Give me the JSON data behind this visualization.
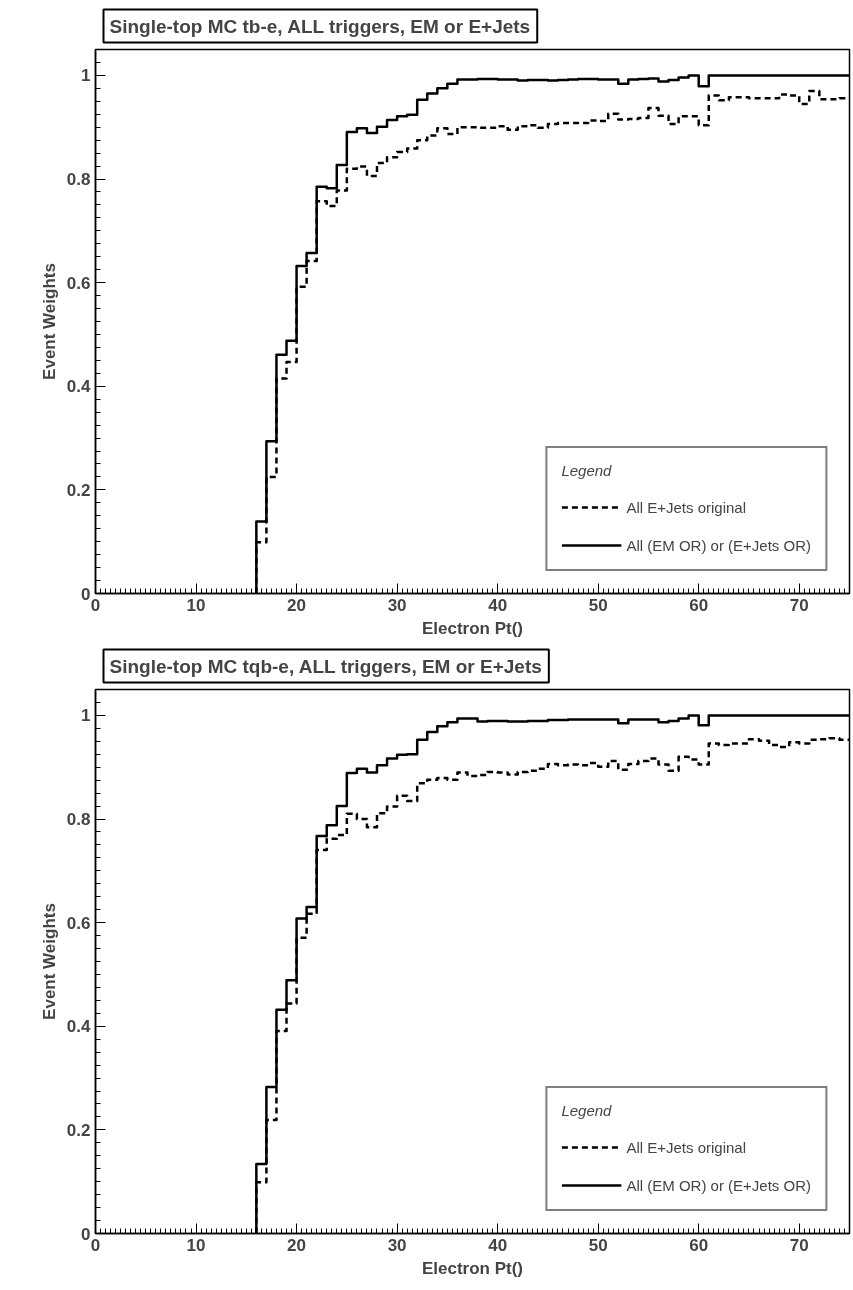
{
  "chart_data": [
    {
      "type": "histogram",
      "title": "Single-top MC tb-e, ALL triggers, EM or E+Jets",
      "xlabel": "Electron Pt()",
      "ylabel": "Event Weights",
      "legend_title": "Legend",
      "legend": "bottom right",
      "grid": false,
      "xlim": [
        0,
        75
      ],
      "ylim": [
        0,
        1.05
      ],
      "xticks": [
        0,
        10,
        20,
        30,
        40,
        50,
        60,
        70
      ],
      "yticks": [
        0,
        0.2,
        0.4,
        0.6,
        0.8,
        1
      ],
      "bins": [
        16,
        17,
        18,
        19,
        20,
        21,
        22,
        23,
        24,
        25,
        26,
        27,
        28,
        29,
        30,
        31,
        32,
        33,
        34,
        35,
        36,
        37,
        38,
        39,
        40,
        41,
        42,
        43,
        44,
        45,
        46,
        47,
        48,
        49,
        50,
        51,
        52,
        53,
        54,
        55,
        56,
        57,
        58,
        59,
        60,
        61,
        62,
        63,
        64,
        65,
        66,
        67,
        68,
        69,
        70,
        71,
        72,
        73,
        74,
        75
      ],
      "series": [
        {
          "name": "All E+Jets original",
          "color": "#000000",
          "line_style": "dashed",
          "values": [
            0.099,
            0.225,
            0.415,
            0.447,
            0.592,
            0.642,
            0.757,
            0.748,
            0.778,
            0.82,
            0.824,
            0.806,
            0.831,
            0.842,
            0.852,
            0.859,
            0.875,
            0.884,
            0.898,
            0.887,
            0.9,
            0.9,
            0.899,
            0.899,
            0.902,
            0.895,
            0.902,
            0.904,
            0.899,
            0.906,
            0.908,
            0.908,
            0.908,
            0.913,
            0.912,
            0.926,
            0.915,
            0.916,
            0.918,
            0.937,
            0.922,
            0.906,
            0.921,
            0.921,
            0.904,
            0.961,
            0.952,
            0.958,
            0.958,
            0.956,
            0.956,
            0.956,
            0.963,
            0.961,
            0.945,
            0.97,
            0.954,
            0.954,
            0.956
          ]
        },
        {
          "name": "All (EM OR) or (E+Jets OR)",
          "color": "#000000",
          "line_style": "solid",
          "values": [
            0.139,
            0.294,
            0.461,
            0.488,
            0.632,
            0.657,
            0.785,
            0.782,
            0.827,
            0.891,
            0.898,
            0.889,
            0.901,
            0.914,
            0.921,
            0.924,
            0.953,
            0.965,
            0.975,
            0.984,
            0.992,
            0.992,
            0.993,
            0.993,
            0.992,
            0.992,
            0.99,
            0.991,
            0.991,
            0.99,
            0.991,
            0.992,
            0.993,
            0.993,
            0.992,
            0.992,
            0.984,
            0.992,
            0.993,
            0.994,
            0.988,
            0.991,
            0.996,
            1.0,
            0.979,
            1.0,
            1.0,
            1.0,
            1.0,
            1.0,
            1.0,
            1.0,
            1.0,
            1.0,
            1.0,
            1.0,
            1.0,
            1.0,
            1.0
          ]
        }
      ]
    },
    {
      "type": "histogram",
      "title": "Single-top MC tqb-e, ALL triggers, EM or E+Jets",
      "xlabel": "Electron Pt()",
      "ylabel": "Event Weights",
      "legend_title": "Legend",
      "legend": "bottom right",
      "grid": false,
      "xlim": [
        0,
        75
      ],
      "ylim": [
        0,
        1.05
      ],
      "xticks": [
        0,
        10,
        20,
        30,
        40,
        50,
        60,
        70
      ],
      "yticks": [
        0,
        0.2,
        0.4,
        0.6,
        0.8,
        1
      ],
      "bins": [
        16,
        17,
        18,
        19,
        20,
        21,
        22,
        23,
        24,
        25,
        26,
        27,
        28,
        29,
        30,
        31,
        32,
        33,
        34,
        35,
        36,
        37,
        38,
        39,
        40,
        41,
        42,
        43,
        44,
        45,
        46,
        47,
        48,
        49,
        50,
        51,
        52,
        53,
        54,
        55,
        56,
        57,
        58,
        59,
        60,
        61,
        62,
        63,
        64,
        65,
        66,
        67,
        68,
        69,
        70,
        71,
        72,
        73,
        74,
        75
      ],
      "series": [
        {
          "name": "All E+Jets original",
          "color": "#000000",
          "line_style": "dashed",
          "values": [
            0.099,
            0.219,
            0.391,
            0.444,
            0.571,
            0.617,
            0.74,
            0.762,
            0.769,
            0.81,
            0.8,
            0.784,
            0.811,
            0.824,
            0.845,
            0.835,
            0.869,
            0.876,
            0.879,
            0.876,
            0.89,
            0.883,
            0.885,
            0.891,
            0.89,
            0.886,
            0.891,
            0.893,
            0.897,
            0.906,
            0.904,
            0.905,
            0.904,
            0.908,
            0.901,
            0.912,
            0.895,
            0.906,
            0.912,
            0.917,
            0.905,
            0.893,
            0.92,
            0.915,
            0.905,
            0.946,
            0.943,
            0.946,
            0.946,
            0.954,
            0.951,
            0.943,
            0.939,
            0.948,
            0.946,
            0.953,
            0.954,
            0.956,
            0.953
          ]
        },
        {
          "name": "All (EM OR) or (E+Jets OR)",
          "color": "#000000",
          "line_style": "solid",
          "values": [
            0.134,
            0.283,
            0.432,
            0.489,
            0.608,
            0.63,
            0.767,
            0.788,
            0.825,
            0.889,
            0.897,
            0.89,
            0.904,
            0.917,
            0.924,
            0.925,
            0.953,
            0.968,
            0.979,
            0.987,
            0.994,
            0.994,
            0.988,
            0.989,
            0.989,
            0.988,
            0.988,
            0.989,
            0.989,
            0.991,
            0.991,
            0.992,
            0.992,
            0.992,
            0.992,
            0.992,
            0.985,
            0.992,
            0.992,
            0.992,
            0.987,
            0.989,
            0.994,
            1.0,
            0.981,
            1.0,
            1.0,
            1.0,
            1.0,
            1.0,
            1.0,
            1.0,
            1.0,
            1.0,
            1.0,
            1.0,
            1.0,
            1.0,
            1.0
          ]
        }
      ]
    }
  ]
}
